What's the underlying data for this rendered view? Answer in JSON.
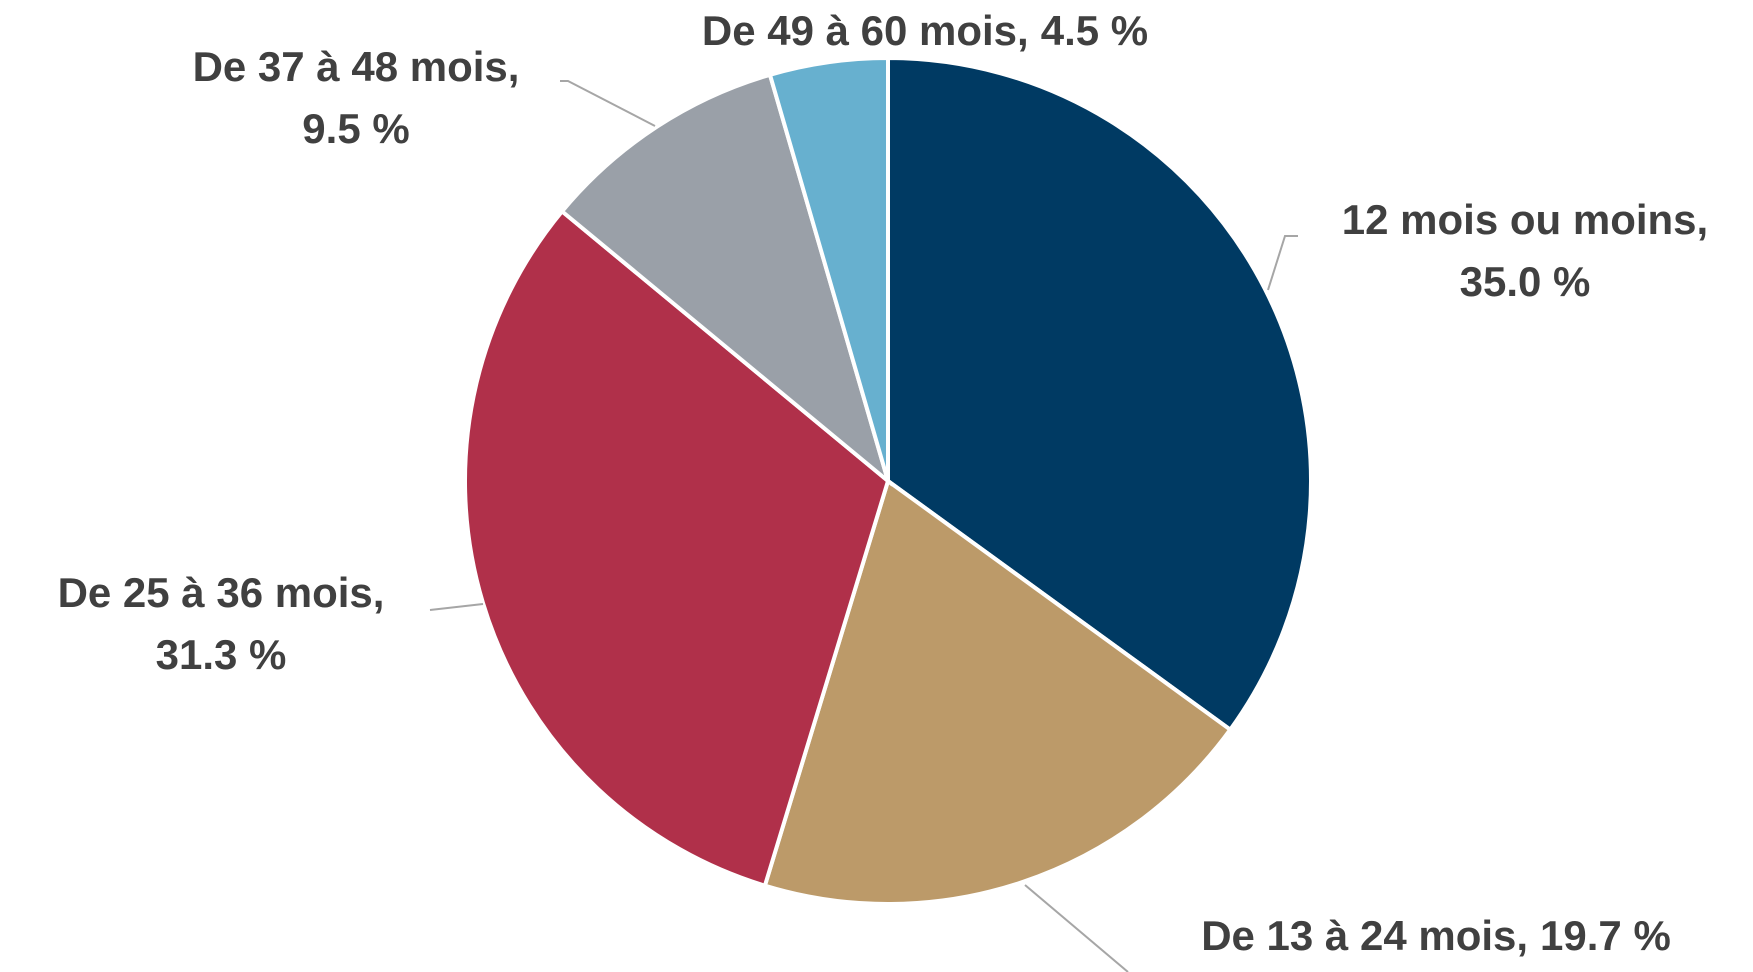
{
  "chart_data": {
    "type": "pie",
    "categories": [
      "12 mois ou moins,",
      "De 13 à 24 mois,",
      "De 25 à 36 mois,",
      "De 37 à 48 mois,",
      "De 49 à 60 mois,"
    ],
    "values": [
      35.0,
      19.7,
      31.3,
      9.5,
      4.5
    ],
    "value_labels": [
      "35.0 %",
      "19.7 %",
      "31.3 %",
      "9.5 %",
      "4.5 %"
    ],
    "colors": [
      "#003a63",
      "#bc9a69",
      "#b0304a",
      "#9aa0a8",
      "#67b0cf"
    ]
  }
}
